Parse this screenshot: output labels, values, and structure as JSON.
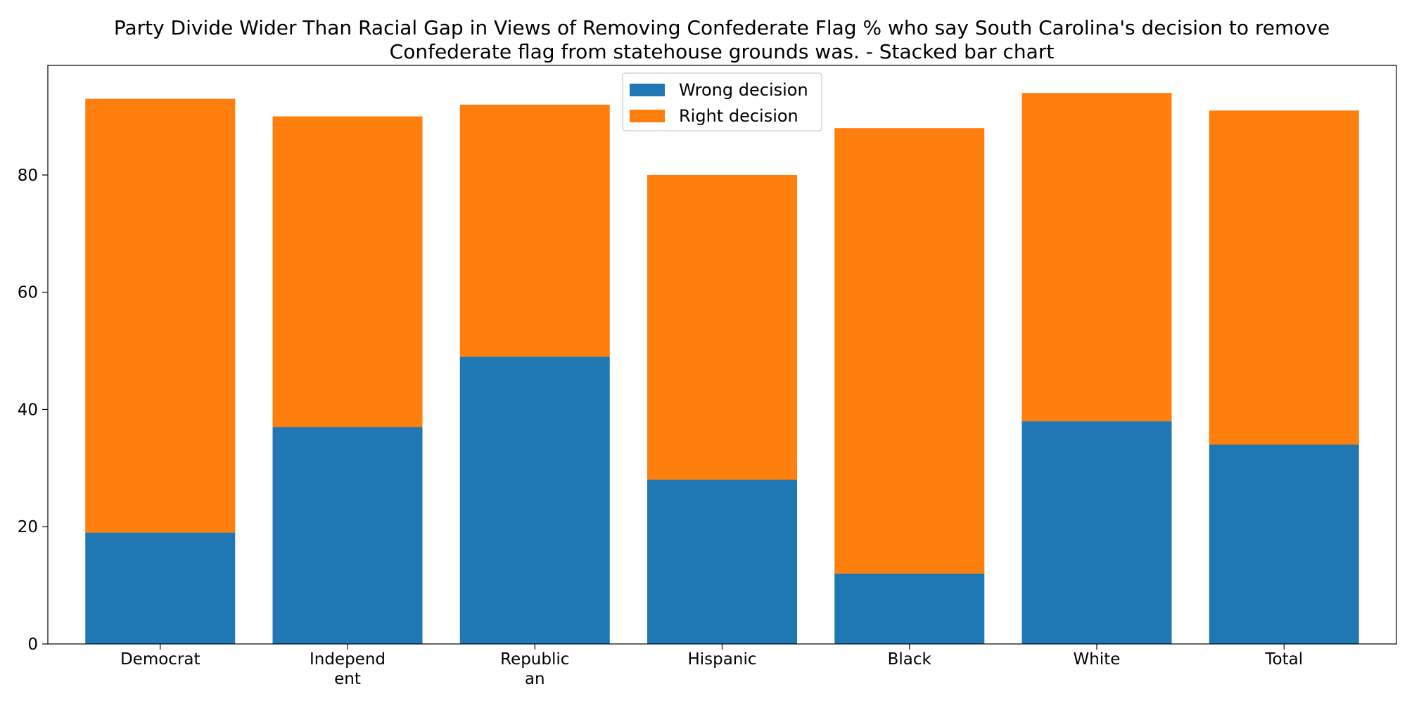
{
  "chart_data": {
    "type": "bar",
    "stacked": true,
    "title_lines": [
      "Party Divide Wider Than Racial Gap in Views of Removing Confederate Flag % who say South Carolina's decision to remove",
      "Confederate flag from statehouse grounds was.  - Stacked bar chart"
    ],
    "categories": [
      "Democrat",
      "Independent",
      "Republican",
      "Hispanic",
      "Black",
      "White",
      "Total"
    ],
    "category_label_lines": [
      [
        "Democrat"
      ],
      [
        "Independ",
        "ent"
      ],
      [
        "Republic",
        "an"
      ],
      [
        "Hispanic"
      ],
      [
        "Black"
      ],
      [
        "White"
      ],
      [
        "Total"
      ]
    ],
    "series": [
      {
        "name": "Wrong decision",
        "values": [
          19,
          37,
          49,
          28,
          12,
          38,
          34
        ],
        "color": "#1f77b4"
      },
      {
        "name": "Right decision",
        "values": [
          74,
          53,
          43,
          52,
          76,
          56,
          57
        ],
        "color": "#ff7f0e"
      }
    ],
    "xlabel": "",
    "ylabel": "",
    "ylim": [
      0,
      98.7
    ],
    "yticks": [
      0,
      20,
      40,
      60,
      80
    ],
    "grid": false,
    "legend_position": "top-center"
  }
}
